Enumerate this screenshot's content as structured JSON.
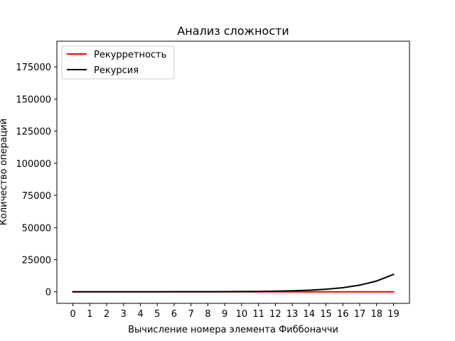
{
  "chart_data": {
    "type": "line",
    "title": "Анализ сложности",
    "xlabel": "Вычисление номера элемента Фиббоначчи",
    "ylabel": "Количество операций",
    "x": [
      0,
      1,
      2,
      3,
      4,
      5,
      6,
      7,
      8,
      9,
      10,
      11,
      12,
      13,
      14,
      15,
      16,
      17,
      18,
      19
    ],
    "xlim": [
      -0.95,
      19.95
    ],
    "ylim": [
      -9000,
      195000
    ],
    "yticks": [
      0,
      25000,
      50000,
      75000,
      100000,
      125000,
      150000,
      175000
    ],
    "grid": false,
    "legend_position": "top-left",
    "series": [
      {
        "name": "Рекурретность",
        "color": "#ff0000",
        "values": [
          0,
          1,
          2,
          3,
          4,
          5,
          6,
          7,
          8,
          9,
          10,
          11,
          12,
          13,
          14,
          15,
          16,
          17,
          18,
          19
        ]
      },
      {
        "name": "Рекурсия",
        "color": "#000000",
        "values": [
          1,
          1,
          3,
          5,
          9,
          15,
          25,
          41,
          67,
          109,
          177,
          287,
          465,
          753,
          1219,
          1973,
          3193,
          5167,
          8361,
          13529
        ]
      }
    ]
  }
}
